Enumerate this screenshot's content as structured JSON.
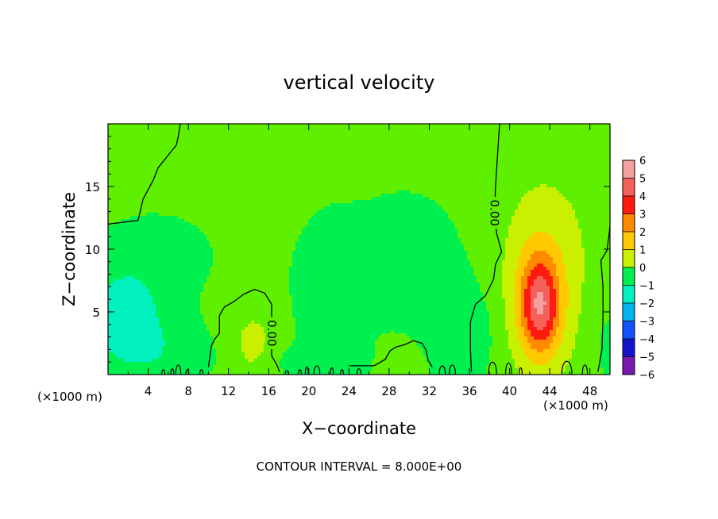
{
  "chart_data": {
    "type": "heatmap",
    "title": "vertical velocity",
    "xlabel": "X−coordinate",
    "ylabel": "Z−coordinate",
    "x_unit_left": "(×1000 m)",
    "x_unit_right": "(×1000 m)",
    "footer": "CONTOUR INTERVAL = 8.000E+00",
    "xlim": [
      0,
      50
    ],
    "ylim": [
      0,
      20
    ],
    "x_ticks": [
      {
        "v": 4,
        "label": "4"
      },
      {
        "v": 8,
        "label": "8"
      },
      {
        "v": 12,
        "label": "12"
      },
      {
        "v": 16,
        "label": "16"
      },
      {
        "v": 20,
        "label": "20"
      },
      {
        "v": 24,
        "label": "24"
      },
      {
        "v": 28,
        "label": "28"
      },
      {
        "v": 32,
        "label": "32"
      },
      {
        "v": 36,
        "label": "36"
      },
      {
        "v": 40,
        "label": "40"
      },
      {
        "v": 44,
        "label": "44"
      },
      {
        "v": 48,
        "label": "48"
      }
    ],
    "y_ticks": [
      {
        "v": 5,
        "label": "5"
      },
      {
        "v": 10,
        "label": "10"
      },
      {
        "v": 15,
        "label": "15"
      }
    ],
    "colorbar": {
      "levels": [
        {
          "v": 6,
          "label": "6",
          "color": "#f4a0a0"
        },
        {
          "v": 5,
          "label": "5",
          "color": "#f4605a"
        },
        {
          "v": 4,
          "label": "4",
          "color": "#ff1a10"
        },
        {
          "v": 3,
          "label": "3",
          "color": "#ff8a00"
        },
        {
          "v": 2,
          "label": "2",
          "color": "#ffc800"
        },
        {
          "v": 1,
          "label": "1",
          "color": "#c8f000"
        },
        {
          "v": 0,
          "label": "0",
          "color": "#5ef000"
        },
        {
          "v": -1,
          "label": "−1",
          "color": "#00f050"
        },
        {
          "v": -2,
          "label": "−2",
          "color": "#00f0c0"
        },
        {
          "v": -3,
          "label": "−3",
          "color": "#00b4f0"
        },
        {
          "v": -4,
          "label": "−4",
          "color": "#1450ff"
        },
        {
          "v": -5,
          "label": "−5",
          "color": "#1414d0"
        },
        {
          "v": -6,
          "label": "−6",
          "color": "#7a18b0"
        }
      ]
    },
    "contour_labels": [
      {
        "text": "0.00",
        "x": 16.3,
        "z": 3.3
      },
      {
        "text": "0.00",
        "x": 38.5,
        "z": 12.9
      }
    ],
    "field_features": [
      {
        "x": 43,
        "z": 5.5,
        "sx": 1.3,
        "sz": 2.6,
        "amp": 4.1
      },
      {
        "x": 43,
        "z": 6.5,
        "sx": 2.6,
        "sz": 4.8,
        "amp": 1.6
      },
      {
        "x": 44,
        "z": 10,
        "sx": 5.0,
        "sz": 6.5,
        "amp": 0.5
      },
      {
        "x": 14.5,
        "z": 2.0,
        "sx": 1.8,
        "sz": 2.5,
        "amp": 1.1
      },
      {
        "x": 29.5,
        "z": 1.2,
        "sx": 1.8,
        "sz": 1.5,
        "amp": 0.8
      },
      {
        "x": 1.5,
        "z": 4.5,
        "sx": 3.2,
        "sz": 3.0,
        "amp": -1.7
      },
      {
        "x": 5,
        "z": 9.5,
        "sx": 5.0,
        "sz": 3.0,
        "amp": -0.6
      },
      {
        "x": 30,
        "z": 8,
        "sx": 6.5,
        "sz": 6.0,
        "amp": -0.65
      },
      {
        "x": 21.5,
        "z": 6,
        "sx": 2.5,
        "sz": 4.5,
        "amp": -0.6
      },
      {
        "x": 33.5,
        "z": 3.5,
        "sx": 2.5,
        "sz": 3.0,
        "amp": -0.7
      },
      {
        "x": 37,
        "z": 3,
        "sx": 1.5,
        "sz": 2.5,
        "amp": -0.5
      },
      {
        "x": 49.5,
        "z": 3,
        "sx": 1.5,
        "sz": 4.0,
        "amp": -0.6
      },
      {
        "x": 6,
        "z": 1.5,
        "sx": 4.0,
        "sz": 2.0,
        "amp": -0.8
      },
      {
        "x": 20,
        "z": 0.9,
        "sx": 4.0,
        "sz": 1.0,
        "amp": -0.7
      }
    ],
    "zero_contours": [
      [
        [
          0,
          12
        ],
        [
          3,
          12.3
        ],
        [
          3.5,
          14
        ],
        [
          4.5,
          15.5
        ],
        [
          5,
          16.5
        ],
        [
          6,
          17.5
        ],
        [
          6.8,
          18.3
        ],
        [
          7,
          19
        ],
        [
          7.2,
          20
        ]
      ],
      [
        [
          10,
          0.6
        ],
        [
          10.3,
          2.3
        ],
        [
          10.6,
          2.8
        ],
        [
          11.1,
          3.3
        ],
        [
          11.1,
          4.7
        ],
        [
          11.6,
          5.4
        ],
        [
          12.5,
          5.8
        ],
        [
          13.5,
          6.4
        ],
        [
          14.6,
          6.8
        ],
        [
          15.6,
          6.5
        ],
        [
          16.3,
          5.6
        ],
        [
          16.3,
          4.7
        ],
        [
          16.3,
          1.5
        ],
        [
          16.8,
          0.8
        ],
        [
          17.1,
          0.2
        ]
      ],
      [
        [
          24,
          0.7
        ],
        [
          25.3,
          0.7
        ],
        [
          26.5,
          0.7
        ],
        [
          27.6,
          1.2
        ],
        [
          28.1,
          1.9
        ],
        [
          28.7,
          2.2
        ],
        [
          29.6,
          2.4
        ],
        [
          30.4,
          2.7
        ],
        [
          31.3,
          2.5
        ],
        [
          31.7,
          1.9
        ],
        [
          31.9,
          1.1
        ],
        [
          32.3,
          0.6
        ]
      ],
      [
        [
          36.2,
          0.2
        ],
        [
          36.1,
          2
        ],
        [
          36.1,
          4.2
        ],
        [
          36.6,
          5.6
        ],
        [
          37.6,
          6.3
        ],
        [
          38.4,
          7.6
        ],
        [
          38.6,
          8.8
        ],
        [
          39.2,
          9.8
        ],
        [
          38.7,
          11.3
        ],
        [
          38.5,
          12.9
        ],
        [
          38.6,
          15
        ],
        [
          38.8,
          17.5
        ],
        [
          39.0,
          20
        ]
      ],
      [
        [
          48.8,
          0.2
        ],
        [
          49.2,
          2
        ],
        [
          49.3,
          4.5
        ],
        [
          49.3,
          7
        ],
        [
          49.1,
          9.1
        ],
        [
          49.7,
          9.9
        ],
        [
          49.9,
          11.1
        ],
        [
          50,
          11.8
        ]
      ]
    ],
    "ground_loops": [
      {
        "x": 5.5,
        "w": 0.3,
        "h": 0.5
      },
      {
        "x": 6.4,
        "w": 0.3,
        "h": 0.6
      },
      {
        "x": 7.0,
        "w": 0.5,
        "h": 1.0
      },
      {
        "x": 7.9,
        "w": 0.3,
        "h": 0.5
      },
      {
        "x": 9.3,
        "w": 0.3,
        "h": 0.5
      },
      {
        "x": 17.8,
        "w": 0.3,
        "h": 0.4
      },
      {
        "x": 19.1,
        "w": 0.3,
        "h": 0.5
      },
      {
        "x": 19.8,
        "w": 0.3,
        "h": 0.8
      },
      {
        "x": 20.8,
        "w": 0.6,
        "h": 0.9
      },
      {
        "x": 22.3,
        "w": 0.3,
        "h": 0.7
      },
      {
        "x": 23.3,
        "w": 0.3,
        "h": 0.5
      },
      {
        "x": 25.0,
        "w": 0.4,
        "h": 0.6
      },
      {
        "x": 33.3,
        "w": 0.6,
        "h": 0.9
      },
      {
        "x": 34.3,
        "w": 0.6,
        "h": 1.0
      },
      {
        "x": 38.3,
        "w": 0.8,
        "h": 1.3
      },
      {
        "x": 39.9,
        "w": 0.6,
        "h": 1.2
      },
      {
        "x": 41.1,
        "w": 0.3,
        "h": 0.7
      },
      {
        "x": 45.7,
        "w": 1.0,
        "h": 1.4
      },
      {
        "x": 47.5,
        "w": 0.5,
        "h": 1.0
      }
    ]
  }
}
